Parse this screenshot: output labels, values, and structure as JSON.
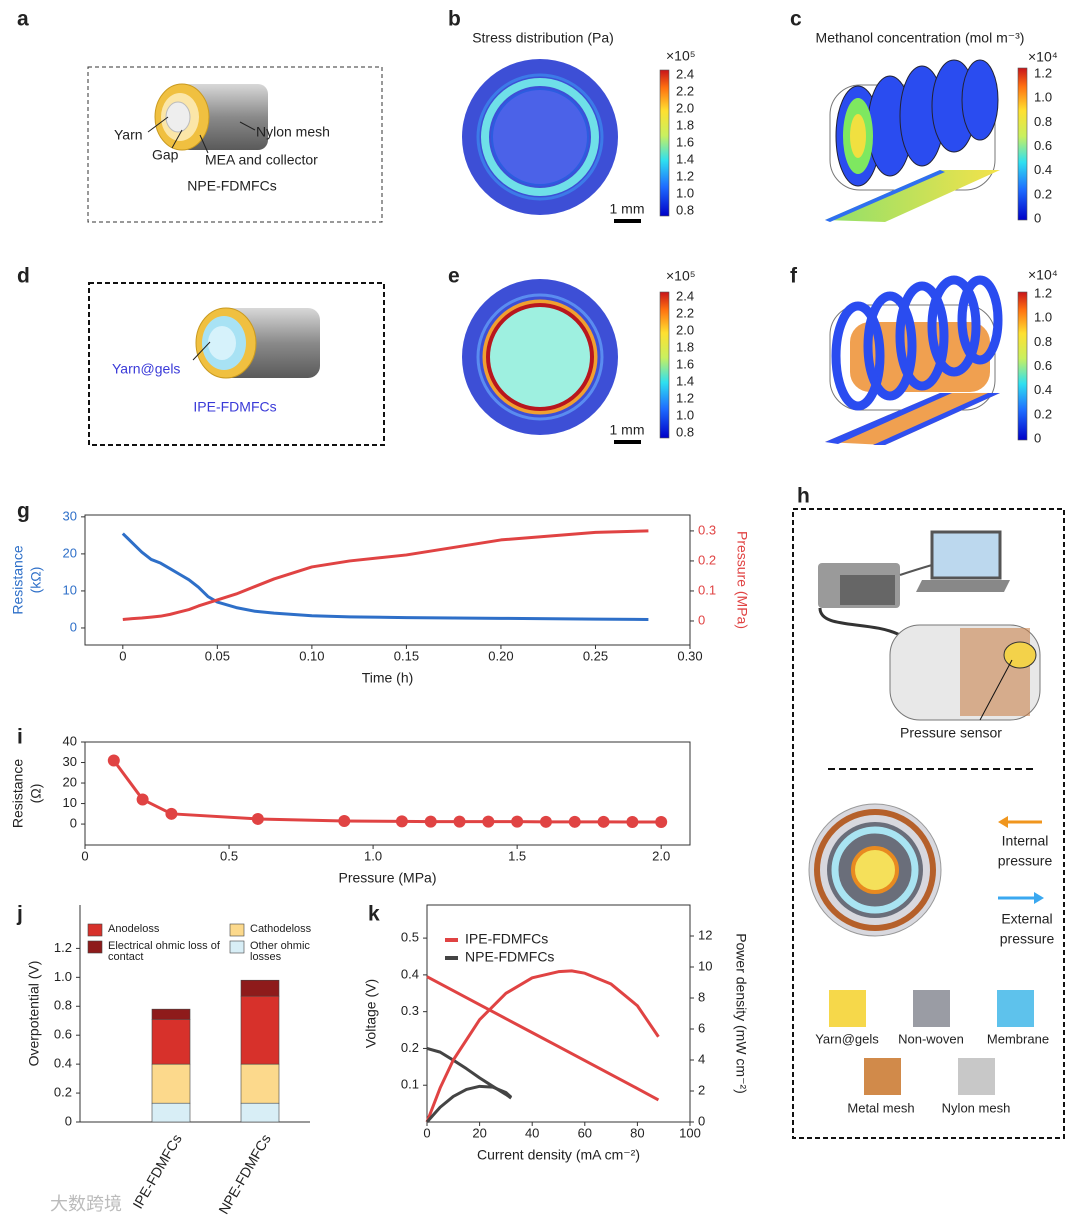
{
  "panel_labels": [
    "a",
    "b",
    "c",
    "d",
    "e",
    "f",
    "g",
    "h",
    "i",
    "j",
    "k"
  ],
  "panel_a": {
    "labels": [
      "Yarn",
      "Gap",
      "Nylon mesh",
      "MEA and collector"
    ],
    "caption": "NPE-FDMFCs"
  },
  "panel_b": {
    "title": "Stress distribution (Pa)",
    "multiplier": "×10⁵",
    "colorbar_ticks": [
      "2.4",
      "2.2",
      "2.0",
      "1.8",
      "1.6",
      "1.4",
      "1.2",
      "1.0",
      "0.8"
    ],
    "scale_bar": "1 mm"
  },
  "panel_c": {
    "title": "Methanol concentration (mol m⁻³)",
    "multiplier": "×10⁴",
    "colorbar_ticks": [
      "1.2",
      "1.0",
      "0.8",
      "0.6",
      "0.4",
      "0.2",
      "0"
    ]
  },
  "panel_d": {
    "label": "Yarn@gels",
    "caption": "IPE-FDMFCs"
  },
  "panel_e": {
    "multiplier": "×10⁵",
    "colorbar_ticks": [
      "2.4",
      "2.2",
      "2.0",
      "1.8",
      "1.6",
      "1.4",
      "1.2",
      "1.0",
      "0.8"
    ],
    "scale_bar": "1 mm"
  },
  "panel_f": {
    "multiplier": "×10⁴",
    "colorbar_ticks": [
      "1.2",
      "1.0",
      "0.8",
      "0.6",
      "0.4",
      "0.2",
      "0"
    ]
  },
  "panel_h": {
    "sensor_label": "Pressure sensor",
    "internal_pressure": [
      "Internal",
      "pressure"
    ],
    "external_pressure": [
      "External",
      "pressure"
    ],
    "materials": [
      "Yarn@gels",
      "Non-woven",
      "Membrane",
      "Metal mesh",
      "Nylon mesh"
    ]
  },
  "watermark": "大数跨境",
  "chart_data": [
    {
      "type": "line",
      "colored_axes": true,
      "x": [
        0,
        0.005,
        0.01,
        0.015,
        0.02,
        0.025,
        0.03,
        0.035,
        0.04,
        0.045,
        0.05,
        0.06,
        0.07,
        0.08,
        0.1,
        0.12,
        0.15,
        0.2,
        0.25,
        0.278
      ],
      "xlim": [
        -0.02,
        0.3
      ],
      "xticks": [
        0,
        0.05,
        {
          "value": 0.1,
          "label": "0.10"
        },
        0.15,
        {
          "value": 0.2,
          "label": "0.20"
        },
        0.25,
        {
          "value": 0.3,
          "label": "0.30"
        }
      ],
      "xlabel": "Time (h)",
      "ylabel": [
        "Resistance",
        "(kΩ)"
      ],
      "ylim": [
        -4.6,
        30.5
      ],
      "yticks": [
        0,
        10,
        20,
        30
      ],
      "y2label": "Pressure (MPa)",
      "y2lim": [
        -0.08,
        0.353
      ],
      "y2ticks": [
        0,
        0.1,
        0.2,
        0.3
      ],
      "series": [
        {
          "color": "#2e6fc8",
          "values": [
            25.5,
            23,
            20.5,
            18.5,
            17.5,
            16,
            14.5,
            13,
            11,
            8.5,
            7,
            5.5,
            4.5,
            4,
            3.3,
            3,
            2.8,
            2.6,
            2.4,
            2.3
          ]
        },
        {
          "color": "#e04343",
          "axis": "y2",
          "values": [
            0.005,
            0.008,
            0.01,
            0.013,
            0.016,
            0.022,
            0.03,
            0.038,
            0.05,
            0.06,
            0.07,
            0.09,
            0.115,
            0.14,
            0.18,
            0.2,
            0.22,
            0.27,
            0.295,
            0.3
          ]
        }
      ]
    },
    {
      "type": "line",
      "markers": true,
      "x": [
        0.1,
        0.2,
        0.3,
        0.6,
        0.9,
        1.1,
        1.2,
        1.3,
        1.4,
        1.5,
        1.6,
        1.7,
        1.8,
        1.9,
        2
      ],
      "xlim": [
        0,
        2.1
      ],
      "xticks": [
        0,
        0.5,
        {
          "value": 1,
          "label": "1.0"
        },
        1.5,
        {
          "value": 2,
          "label": "2.0"
        }
      ],
      "xlabel": "Pressure (MPa)",
      "ylabel": [
        "Resistance",
        "(Ω)"
      ],
      "ylim": [
        -10.2,
        40
      ],
      "yticks": [
        0,
        10,
        20,
        30,
        40
      ],
      "series": [
        {
          "color": "#e04343",
          "values": [
            31,
            12,
            5,
            2.5,
            1.5,
            1.3,
            1.2,
            1.2,
            1.2,
            1.2,
            1.1,
            1.1,
            1.1,
            1,
            1
          ]
        }
      ]
    },
    {
      "type": "bar",
      "stacked": true,
      "categories": [
        "IPE-FDMFCs",
        "NPE-FDMFCs"
      ],
      "ylabel": "Overpotential (V)",
      "ylim": [
        0,
        1.5
      ],
      "yticks": [
        0,
        0.2,
        0.4,
        0.6,
        0.8,
        {
          "value": 1,
          "label": "1.0"
        },
        1.2
      ],
      "series": [
        {
          "name": "Other ohmic losses",
          "color": "#d8eef6",
          "values": [
            0.13,
            0.13
          ]
        },
        {
          "name": "Cathodeloss",
          "color": "#fcd98c",
          "values": [
            0.27,
            0.27
          ]
        },
        {
          "name": "Anodeloss",
          "color": "#d7312b",
          "values": [
            0.31,
            0.47
          ]
        },
        {
          "name": "Electrical ohmic loss of contact",
          "color": "#8e1b1b",
          "values": [
            0.07,
            0.11
          ]
        }
      ]
    },
    {
      "type": "line",
      "xlim": [
        0,
        100
      ],
      "xticks": [
        0,
        20,
        40,
        60,
        80,
        100
      ],
      "xlabel": "Current density (mA cm⁻²)",
      "ylabel": "Voltage (V)",
      "ylim": [
        0,
        0.59
      ],
      "yticks": [
        0.1,
        0.2,
        0.3,
        0.4,
        0.5
      ],
      "y2label": "Power density (mW cm⁻²)",
      "y2lim": [
        0,
        14
      ],
      "y2ticks": [
        0,
        2,
        4,
        6,
        8,
        10,
        12
      ],
      "series": [
        {
          "name": "IPE-FDMFCs",
          "color": "#e04343",
          "x": [
            0,
            5,
            10,
            20,
            30,
            40,
            50,
            55,
            60,
            70,
            80,
            88
          ],
          "values": [
            0.395,
            0.376,
            0.357,
            0.319,
            0.281,
            0.243,
            0.205,
            0.186,
            0.167,
            0.129,
            0.091,
            0.06
          ]
        },
        {
          "name": "NPE-FDMFCs",
          "color": "#444444",
          "x": [
            0,
            5,
            10,
            15,
            20,
            25,
            30,
            32
          ],
          "values": [
            0.2,
            0.19,
            0.168,
            0.145,
            0.12,
            0.097,
            0.075,
            0.065
          ]
        },
        {
          "color": "#e04343",
          "axis": "y2",
          "x": [
            0,
            5,
            10,
            20,
            30,
            40,
            50,
            55,
            60,
            70,
            80,
            88
          ],
          "values": [
            0,
            2.2,
            4,
            6.6,
            8.3,
            9.3,
            9.7,
            9.75,
            9.6,
            8.9,
            7.5,
            5.5
          ]
        },
        {
          "color": "#444444",
          "axis": "y2",
          "x": [
            0,
            5,
            10,
            15,
            20,
            25,
            30,
            32
          ],
          "values": [
            0,
            0.95,
            1.65,
            2.1,
            2.3,
            2.25,
            1.9,
            1.6
          ]
        }
      ]
    }
  ]
}
